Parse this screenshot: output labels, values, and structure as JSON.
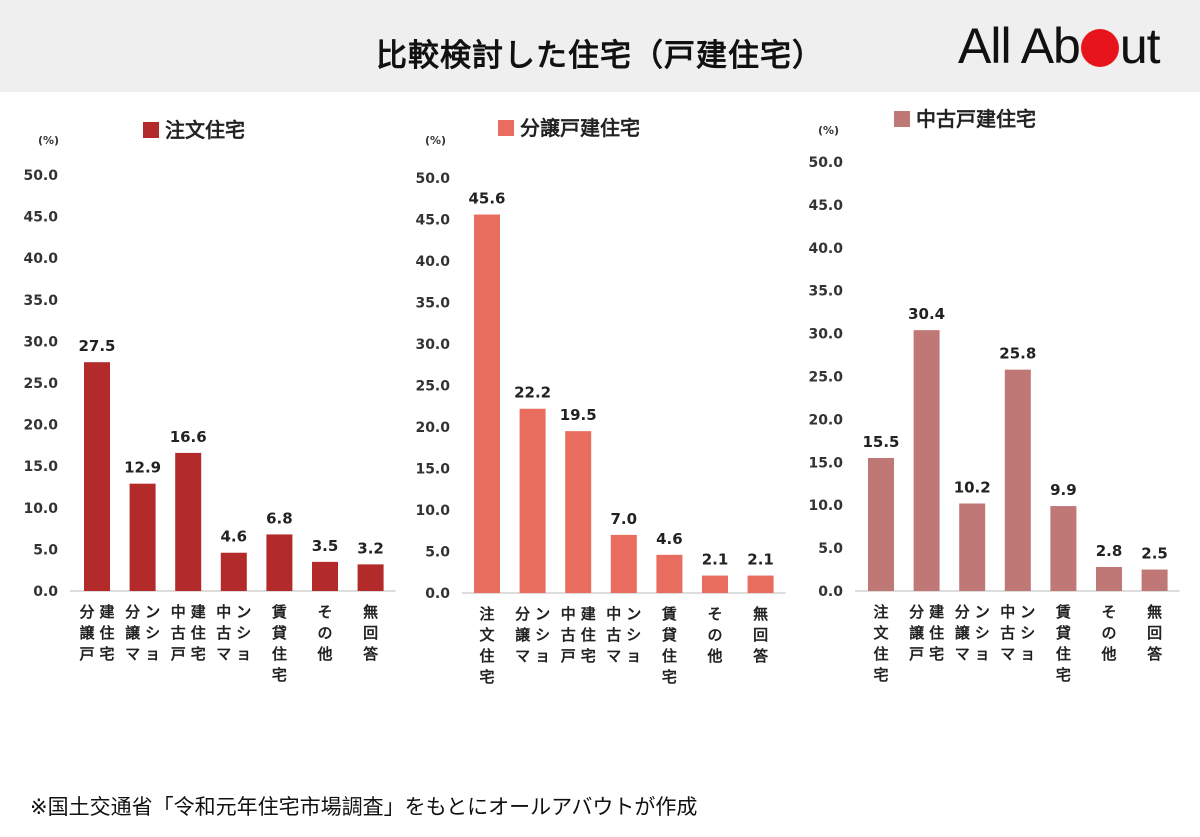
{
  "header": {
    "title": "比較検討した住宅（戸建住宅）",
    "logo": {
      "text_before": "All Ab",
      "text_after": "ut",
      "dot_color": "#e8141b"
    }
  },
  "footnote": "※国土交通省「令和元年住宅市場調査」をもとにオールアバウトが作成",
  "chart_data": [
    {
      "type": "bar",
      "title": "注文住宅",
      "color": "#b22a2a",
      "unit_label": "(%)",
      "ylim": [
        0,
        50
      ],
      "yticks": [
        "0.0",
        "5.0",
        "10.0",
        "15.0",
        "20.0",
        "25.0",
        "30.0",
        "35.0",
        "40.0",
        "45.0",
        "50.0"
      ],
      "categories": [
        "分譲戸建住宅",
        "分譲マンション",
        "中古戸建住宅",
        "中古マンション",
        "賃貸住宅",
        "その他",
        "無回答"
      ],
      "values": [
        27.5,
        12.9,
        16.6,
        4.6,
        6.8,
        3.5,
        3.2
      ],
      "value_labels": [
        "27.5",
        "12.9",
        "16.6",
        "4.6",
        "6.8",
        "3.5",
        "3.2"
      ]
    },
    {
      "type": "bar",
      "title": "分譲戸建住宅",
      "color": "#e86d5f",
      "unit_label": "(%)",
      "ylim": [
        0,
        50
      ],
      "yticks": [
        "0.0",
        "5.0",
        "10.0",
        "15.0",
        "20.0",
        "25.0",
        "30.0",
        "35.0",
        "40.0",
        "45.0",
        "50.0"
      ],
      "categories": [
        "注文住宅",
        "分譲マンション",
        "中古戸建住宅",
        "中古マンション",
        "賃貸住宅",
        "その他",
        "無回答"
      ],
      "values": [
        45.6,
        22.2,
        19.5,
        7.0,
        4.6,
        2.1,
        2.1
      ],
      "value_labels": [
        "45.6",
        "22.2",
        "19.5",
        "7.0",
        "4.6",
        "2.1",
        "2.1"
      ]
    },
    {
      "type": "bar",
      "title": "中古戸建住宅",
      "color": "#c07876",
      "unit_label": "(%)",
      "ylim": [
        0,
        50
      ],
      "yticks": [
        "0.0",
        "5.0",
        "10.0",
        "15.0",
        "20.0",
        "25.0",
        "30.0",
        "35.0",
        "40.0",
        "45.0",
        "50.0"
      ],
      "categories": [
        "注文住宅",
        "分譲戸建住宅",
        "分譲マンション",
        "中古マンション",
        "賃貸住宅",
        "その他",
        "無回答"
      ],
      "values": [
        15.5,
        30.4,
        10.2,
        25.8,
        9.9,
        2.8,
        2.5
      ],
      "value_labels": [
        "15.5",
        "30.4",
        "10.2",
        "25.8",
        "9.9",
        "2.8",
        "2.5"
      ]
    }
  ]
}
